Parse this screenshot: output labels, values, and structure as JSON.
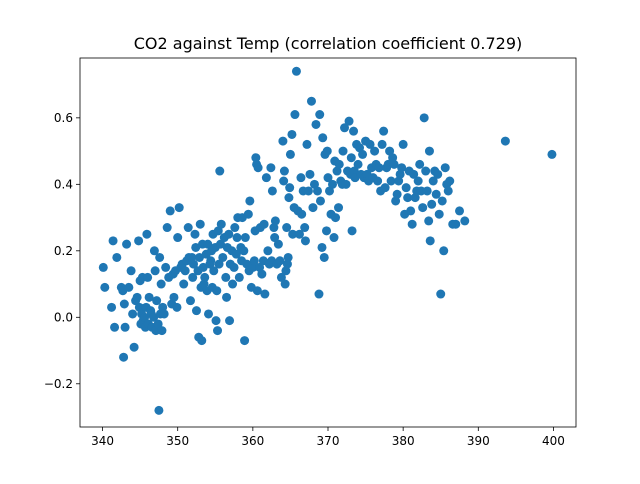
{
  "chart_data": {
    "type": "scatter",
    "title": "CO2 against Temp (correlation coefficient 0.729)",
    "xlabel": "",
    "ylabel": "",
    "xlim": [
      337.0,
      403.0
    ],
    "ylim": [
      -0.33,
      0.78
    ],
    "xticks": [
      340,
      350,
      360,
      370,
      380,
      390,
      400
    ],
    "xtick_labels": [
      "340",
      "350",
      "360",
      "370",
      "380",
      "390",
      "400"
    ],
    "yticks": [
      -0.2,
      0.0,
      0.2,
      0.4,
      0.6
    ],
    "ytick_labels": [
      "−0.2",
      "0.0",
      "0.2",
      "0.4",
      "0.6"
    ],
    "grid": false,
    "marker_color": "#1f77b4",
    "series": [
      {
        "points": [
          [
            340.1,
            0.15
          ],
          [
            340.3,
            0.09
          ],
          [
            341.2,
            0.03
          ],
          [
            341.4,
            0.23
          ],
          [
            341.6,
            -0.03
          ],
          [
            341.9,
            0.18
          ],
          [
            342.5,
            0.09
          ],
          [
            342.7,
            0.08
          ],
          [
            342.8,
            -0.12
          ],
          [
            342.9,
            0.04
          ],
          [
            343.0,
            -0.03
          ],
          [
            343.2,
            0.22
          ],
          [
            343.5,
            0.09
          ],
          [
            343.8,
            0.14
          ],
          [
            344.0,
            0.01
          ],
          [
            344.2,
            -0.09
          ],
          [
            344.4,
            0.05
          ],
          [
            344.6,
            0.06
          ],
          [
            344.8,
            0.23
          ],
          [
            344.9,
            0.03
          ],
          [
            345.0,
            0.11
          ],
          [
            345.1,
            -0.02
          ],
          [
            345.2,
            0.01
          ],
          [
            345.3,
            0.12
          ],
          [
            345.4,
            -0.01
          ],
          [
            345.6,
            0.0
          ],
          [
            345.7,
            -0.03
          ],
          [
            345.8,
            0.03
          ],
          [
            345.9,
            0.25
          ],
          [
            346.0,
            0.12
          ],
          [
            346.1,
            -0.02
          ],
          [
            346.2,
            0.06
          ],
          [
            346.4,
            0.02
          ],
          [
            346.5,
            0.01
          ],
          [
            346.6,
            -0.03
          ],
          [
            346.8,
            0.0
          ],
          [
            346.9,
            0.2
          ],
          [
            347.0,
            0.14
          ],
          [
            347.1,
            -0.04
          ],
          [
            347.2,
            0.05
          ],
          [
            347.4,
            -0.02
          ],
          [
            347.5,
            -0.28
          ],
          [
            347.6,
            0.18
          ],
          [
            347.7,
            0.01
          ],
          [
            347.8,
            0.1
          ],
          [
            347.9,
            -0.04
          ],
          [
            348.0,
            0.03
          ],
          [
            348.2,
            0.01
          ],
          [
            348.4,
            0.15
          ],
          [
            348.6,
            0.27
          ],
          [
            348.8,
            0.12
          ],
          [
            349.0,
            0.32
          ],
          [
            349.2,
            0.04
          ],
          [
            349.4,
            0.13
          ],
          [
            349.5,
            0.06
          ],
          [
            349.7,
            0.14
          ],
          [
            349.9,
            0.03
          ],
          [
            350.0,
            0.24
          ],
          [
            350.2,
            0.33
          ],
          [
            350.4,
            0.15
          ],
          [
            350.6,
            0.16
          ],
          [
            350.8,
            0.1
          ],
          [
            351.0,
            0.14
          ],
          [
            351.2,
            0.17
          ],
          [
            351.4,
            0.27
          ],
          [
            351.5,
            0.18
          ],
          [
            351.7,
            0.05
          ],
          [
            351.9,
            0.18
          ],
          [
            352.0,
            0.12
          ],
          [
            352.1,
            0.16
          ],
          [
            352.3,
            0.25
          ],
          [
            352.4,
            0.21
          ],
          [
            352.5,
            0.02
          ],
          [
            352.7,
            0.14
          ],
          [
            352.8,
            -0.06
          ],
          [
            352.9,
            0.18
          ],
          [
            353.0,
            0.28
          ],
          [
            353.1,
            0.09
          ],
          [
            353.2,
            -0.07
          ],
          [
            353.3,
            0.22
          ],
          [
            353.4,
            0.15
          ],
          [
            353.5,
            0.1
          ],
          [
            353.6,
            0.12
          ],
          [
            353.8,
            0.19
          ],
          [
            353.9,
            0.08
          ],
          [
            354.0,
            0.22
          ],
          [
            354.1,
            0.01
          ],
          [
            354.3,
            0.16
          ],
          [
            354.4,
            0.17
          ],
          [
            354.5,
            0.2
          ],
          [
            354.6,
            0.09
          ],
          [
            354.7,
            0.25
          ],
          [
            354.8,
            0.14
          ],
          [
            355.0,
            0.21
          ],
          [
            355.1,
            -0.01
          ],
          [
            355.2,
            0.08
          ],
          [
            355.3,
            -0.04
          ],
          [
            355.4,
            0.26
          ],
          [
            355.5,
            0.16
          ],
          [
            355.6,
            0.44
          ],
          [
            355.7,
            0.22
          ],
          [
            355.8,
            0.28
          ],
          [
            356.0,
            0.18
          ],
          [
            356.2,
            0.24
          ],
          [
            356.4,
            0.12
          ],
          [
            356.5,
            0.06
          ],
          [
            356.6,
            0.21
          ],
          [
            356.8,
            0.25
          ],
          [
            356.9,
            -0.01
          ],
          [
            357.0,
            0.16
          ],
          [
            357.2,
            0.2
          ],
          [
            357.3,
            0.1
          ],
          [
            357.5,
            0.15
          ],
          [
            357.6,
            0.27
          ],
          [
            357.8,
            0.19
          ],
          [
            357.9,
            0.24
          ],
          [
            358.0,
            0.3
          ],
          [
            358.2,
            0.12
          ],
          [
            358.4,
            0.21
          ],
          [
            358.5,
            0.17
          ],
          [
            358.6,
            0.3
          ],
          [
            358.8,
            0.2
          ],
          [
            358.9,
            -0.07
          ],
          [
            359.0,
            0.24
          ],
          [
            359.2,
            0.16
          ],
          [
            359.4,
            0.31
          ],
          [
            359.5,
            0.14
          ],
          [
            359.6,
            0.35
          ],
          [
            359.8,
            0.09
          ],
          [
            360.0,
            0.15
          ],
          [
            360.2,
            0.17
          ],
          [
            360.3,
            0.26
          ],
          [
            360.4,
            0.48
          ],
          [
            360.5,
            0.46
          ],
          [
            360.6,
            0.08
          ],
          [
            360.7,
            0.45
          ],
          [
            360.9,
            0.15
          ],
          [
            361.0,
            0.27
          ],
          [
            361.2,
            0.13
          ],
          [
            361.4,
            0.17
          ],
          [
            361.5,
            0.28
          ],
          [
            361.6,
            0.07
          ],
          [
            361.8,
            0.42
          ],
          [
            362.0,
            0.2
          ],
          [
            362.2,
            0.16
          ],
          [
            362.4,
            0.45
          ],
          [
            362.5,
            0.17
          ],
          [
            362.6,
            0.38
          ],
          [
            362.8,
            0.27
          ],
          [
            362.9,
            0.24
          ],
          [
            363.0,
            0.29
          ],
          [
            363.2,
            0.16
          ],
          [
            363.4,
            0.22
          ],
          [
            363.6,
            0.17
          ],
          [
            363.8,
            0.12
          ],
          [
            364.0,
            0.53
          ],
          [
            364.1,
            0.41
          ],
          [
            364.2,
            0.44
          ],
          [
            364.3,
            0.1
          ],
          [
            364.4,
            0.14
          ],
          [
            364.5,
            0.27
          ],
          [
            364.6,
            0.16
          ],
          [
            364.7,
            0.18
          ],
          [
            364.8,
            0.36
          ],
          [
            364.9,
            0.39
          ],
          [
            365.0,
            0.49
          ],
          [
            365.2,
            0.55
          ],
          [
            365.3,
            0.25
          ],
          [
            365.5,
            0.33
          ],
          [
            365.6,
            0.61
          ],
          [
            365.8,
            0.74
          ],
          [
            366.0,
            0.32
          ],
          [
            366.2,
            0.25
          ],
          [
            366.4,
            0.42
          ],
          [
            366.5,
            0.31
          ],
          [
            366.7,
            0.38
          ],
          [
            366.9,
            0.27
          ],
          [
            367.0,
            0.23
          ],
          [
            367.2,
            0.52
          ],
          [
            367.4,
            0.38
          ],
          [
            367.6,
            0.43
          ],
          [
            367.8,
            0.65
          ],
          [
            368.0,
            0.33
          ],
          [
            368.2,
            0.4
          ],
          [
            368.4,
            0.58
          ],
          [
            368.6,
            0.38
          ],
          [
            368.8,
            0.07
          ],
          [
            368.9,
            0.61
          ],
          [
            369.0,
            0.35
          ],
          [
            369.2,
            0.21
          ],
          [
            369.3,
            0.54
          ],
          [
            369.5,
            0.18
          ],
          [
            369.6,
            0.49
          ],
          [
            369.8,
            0.26
          ],
          [
            369.9,
            0.5
          ],
          [
            370.0,
            0.42
          ],
          [
            370.2,
            0.38
          ],
          [
            370.4,
            0.31
          ],
          [
            370.6,
            0.4
          ],
          [
            370.8,
            0.24
          ],
          [
            370.9,
            0.47
          ],
          [
            371.0,
            0.3
          ],
          [
            371.2,
            0.44
          ],
          [
            371.4,
            0.33
          ],
          [
            371.5,
            0.46
          ],
          [
            371.7,
            0.41
          ],
          [
            371.9,
            0.4
          ],
          [
            372.0,
            0.5
          ],
          [
            372.2,
            0.57
          ],
          [
            372.4,
            0.4
          ],
          [
            372.6,
            0.44
          ],
          [
            372.8,
            0.59
          ],
          [
            373.0,
            0.43
          ],
          [
            373.1,
            0.48
          ],
          [
            373.2,
            0.26
          ],
          [
            373.4,
            0.56
          ],
          [
            373.5,
            0.44
          ],
          [
            373.6,
            0.42
          ],
          [
            373.8,
            0.52
          ],
          [
            374.0,
            0.46
          ],
          [
            374.2,
            0.51
          ],
          [
            374.4,
            0.43
          ],
          [
            374.6,
            0.49
          ],
          [
            374.8,
            0.42
          ],
          [
            375.0,
            0.53
          ],
          [
            375.2,
            0.43
          ],
          [
            375.4,
            0.41
          ],
          [
            375.6,
            0.52
          ],
          [
            375.8,
            0.45
          ],
          [
            376.0,
            0.42
          ],
          [
            376.2,
            0.5
          ],
          [
            376.4,
            0.46
          ],
          [
            376.6,
            0.41
          ],
          [
            376.8,
            0.45
          ],
          [
            377.0,
            0.38
          ],
          [
            377.2,
            0.52
          ],
          [
            377.4,
            0.56
          ],
          [
            377.6,
            0.39
          ],
          [
            377.8,
            0.45
          ],
          [
            378.0,
            0.46
          ],
          [
            378.2,
            0.5
          ],
          [
            378.4,
            0.41
          ],
          [
            378.6,
            0.48
          ],
          [
            378.8,
            0.46
          ],
          [
            379.0,
            0.35
          ],
          [
            379.2,
            0.37
          ],
          [
            379.4,
            0.41
          ],
          [
            379.6,
            0.43
          ],
          [
            379.8,
            0.45
          ],
          [
            380.0,
            0.52
          ],
          [
            380.2,
            0.31
          ],
          [
            380.4,
            0.39
          ],
          [
            380.6,
            0.36
          ],
          [
            380.8,
            0.44
          ],
          [
            381.0,
            0.32
          ],
          [
            381.2,
            0.28
          ],
          [
            381.4,
            0.43
          ],
          [
            381.6,
            0.36
          ],
          [
            381.8,
            0.38
          ],
          [
            382.0,
            0.41
          ],
          [
            382.2,
            0.46
          ],
          [
            382.4,
            0.38
          ],
          [
            382.6,
            0.33
          ],
          [
            382.8,
            0.6
          ],
          [
            383.0,
            0.44
          ],
          [
            383.2,
            0.38
          ],
          [
            383.4,
            0.29
          ],
          [
            383.5,
            0.5
          ],
          [
            383.6,
            0.23
          ],
          [
            383.8,
            0.34
          ],
          [
            384.0,
            0.41
          ],
          [
            384.2,
            0.44
          ],
          [
            384.4,
            0.37
          ],
          [
            384.6,
            0.43
          ],
          [
            384.8,
            0.31
          ],
          [
            385.0,
            0.07
          ],
          [
            385.2,
            0.35
          ],
          [
            385.4,
            0.2
          ],
          [
            385.6,
            0.45
          ],
          [
            385.8,
            0.4
          ],
          [
            386.0,
            0.38
          ],
          [
            386.2,
            0.41
          ],
          [
            386.6,
            0.28
          ],
          [
            387.0,
            0.28
          ],
          [
            387.5,
            0.32
          ],
          [
            388.2,
            0.29
          ],
          [
            393.6,
            0.53
          ],
          [
            399.8,
            0.49
          ]
        ]
      }
    ]
  }
}
